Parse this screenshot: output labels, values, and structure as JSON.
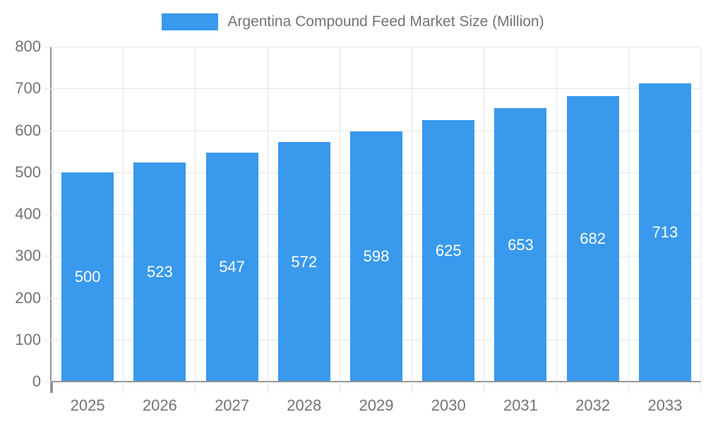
{
  "title": "Argentina Compound Feed Market Size (Million)",
  "legend": {
    "position": "top",
    "items": [
      {
        "label": "Argentina Compound Feed Market Size (Million)",
        "swatch_color": "#3999ED"
      }
    ]
  },
  "chart_data": {
    "type": "bar",
    "title": "Argentina Compound Feed Market Size (Million)",
    "categories": [
      "2025",
      "2026",
      "2027",
      "2028",
      "2029",
      "2030",
      "2031",
      "2032",
      "2033"
    ],
    "values": [
      500,
      523,
      547,
      572,
      598,
      625,
      653,
      682,
      713
    ],
    "xlabel": "",
    "ylabel": "",
    "ylim": [
      0,
      800
    ],
    "yticks": [
      0,
      100,
      200,
      300,
      400,
      500,
      600,
      700,
      800
    ],
    "grid": true,
    "legend_position": "top",
    "bar_labels_visible": true,
    "colors": {
      "bar": "#3999ED",
      "bar_label": "#FFFFFF",
      "grid": "#E6E6E6",
      "axis": "#949494",
      "tick_label": "#737373"
    }
  }
}
